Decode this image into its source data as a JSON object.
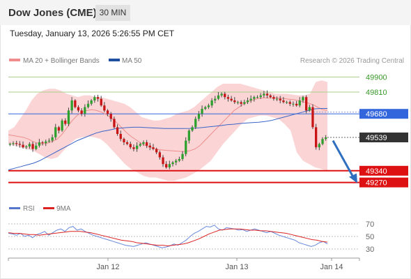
{
  "header": {
    "title": "Dow Jones (CME)",
    "timeframe": "30 MIN"
  },
  "datetime": "Tuesday, January 13, 2026 5:26:55 PM CET",
  "legend": {
    "ma20_label": "MA 20 + Bollinger Bands",
    "ma50_label": "MA 50",
    "rsi_label": "RSI",
    "ma9_label": "9MA"
  },
  "credit": "Research © 2026 Trading Central",
  "colors": {
    "bollinger_fill": "#fbd5d5",
    "ma20": "#f08c8c",
    "ma50": "#3a64c8",
    "candle_up": "#2ea02e",
    "candle_down": "#c81414",
    "resistance_line": "#a8d08d",
    "pivot_line": "#3366dd",
    "support_line": "#dd1111",
    "current_price": "#333333",
    "arrow": "#2f6fbf",
    "rsi": "#6688dd",
    "rsi_ma": "#dd2222"
  },
  "chart_data": [
    {
      "type": "candlestick",
      "x_tick_labels": [
        "Jan 12",
        "Jan 13",
        "Jan 14"
      ],
      "ylim": [
        49185,
        49960
      ],
      "levels": [
        {
          "value": 49900,
          "label": "49900",
          "kind": "resistance"
        },
        {
          "value": 49810,
          "label": "49810",
          "kind": "resistance"
        },
        {
          "value": 49680,
          "label": "49680",
          "kind": "pivot"
        },
        {
          "value": 49539,
          "label": "49539",
          "kind": "current"
        },
        {
          "value": 49340,
          "label": "49340",
          "kind": "support"
        },
        {
          "value": 49270,
          "label": "49270",
          "kind": "support"
        }
      ],
      "close": [
        49500,
        49505,
        49500,
        49495,
        49480,
        49485,
        49500,
        49470,
        49490,
        49510,
        49505,
        49515,
        49520,
        49540,
        49600,
        49580,
        49640,
        49620,
        49700,
        49760,
        49720,
        49700,
        49680,
        49720,
        49740,
        49760,
        49780,
        49770,
        49730,
        49700,
        49680,
        49650,
        49600,
        49560,
        49530,
        49510,
        49500,
        49480,
        49470,
        49490,
        49500,
        49510,
        49490,
        49480,
        49470,
        49450,
        49420,
        49380,
        49360,
        49380,
        49390,
        49400,
        49410,
        49440,
        49520,
        49580,
        49600,
        49650,
        49680,
        49710,
        49720,
        49730,
        49760,
        49770,
        49790,
        49800,
        49780,
        49770,
        49760,
        49750,
        49750,
        49740,
        49750,
        49760,
        49770,
        49780,
        49780,
        49790,
        49800,
        49790,
        49780,
        49770,
        49770,
        49760,
        49750,
        49750,
        49740,
        49740,
        49730,
        49760,
        49780,
        49700,
        49720,
        49600,
        49480,
        49500,
        49530,
        49539
      ],
      "ma20": [
        49555,
        49550,
        49545,
        49540,
        49530,
        49515,
        49505,
        49500,
        49505,
        49515,
        49530,
        49560,
        49600,
        49640,
        49670,
        49690,
        49700,
        49705,
        49700,
        49690,
        49675,
        49655,
        49630,
        49600,
        49570,
        49545,
        49525,
        49505,
        49490,
        49478,
        49470,
        49465,
        49462,
        49460,
        49458,
        49456,
        49455,
        49460,
        49470,
        49490,
        49520,
        49550,
        49580,
        49610,
        49640,
        49670,
        49700,
        49720,
        49740,
        49755,
        49765,
        49772,
        49775,
        49776,
        49776,
        49774,
        49772,
        49768,
        49765,
        49760,
        49752,
        49745,
        49735,
        49720,
        49705,
        49700
      ],
      "ma50": [
        49345,
        49355,
        49365,
        49375,
        49385,
        49400,
        49420,
        49440,
        49460,
        49480,
        49500,
        49520,
        49535,
        49550,
        49565,
        49575,
        49582,
        49590,
        49595,
        49598,
        49600,
        49600,
        49598,
        49596,
        49594,
        49592,
        49592,
        49592,
        49592,
        49593,
        49595,
        49598,
        49602,
        49606,
        49610,
        49615,
        49618,
        49622,
        49625,
        49628,
        49630,
        49634,
        49640,
        49650,
        49660,
        49670,
        49680,
        49690,
        49700,
        49710,
        49712,
        49712
      ],
      "bb_upper": [
        49580,
        49600,
        49650,
        49700,
        49760,
        49800,
        49820,
        49830,
        49830,
        49820,
        49800,
        49790,
        49780,
        49790,
        49790,
        49780,
        49780,
        49770,
        49760,
        49750,
        49740,
        49720,
        49690,
        49660,
        49650,
        49640,
        49640,
        49650,
        49660,
        49680,
        49690,
        49700,
        49720,
        49750,
        49780,
        49810,
        49840,
        49860,
        49860,
        49860,
        49860,
        49850,
        49840,
        49830,
        49820,
        49810,
        49800,
        49800,
        49800,
        49795,
        49790,
        49790,
        49800,
        49870,
        49880,
        49870
      ],
      "bb_lower": [
        49500,
        49490,
        49480,
        49470,
        49460,
        49440,
        49420,
        49410,
        49420,
        49460,
        49500,
        49530,
        49540,
        49545,
        49540,
        49530,
        49500,
        49460,
        49420,
        49380,
        49350,
        49330,
        49310,
        49300,
        49300,
        49290,
        49280,
        49280,
        49290,
        49300,
        49320,
        49340,
        49370,
        49400,
        49450,
        49500,
        49540,
        49580,
        49620,
        49650,
        49660,
        49670,
        49670,
        49660,
        49650,
        49620,
        49580,
        49450,
        49400,
        49380,
        49360,
        49350,
        49340
      ],
      "projection": {
        "from": 49520,
        "to": 49270
      }
    },
    {
      "type": "line",
      "title": "RSI",
      "y_ticks": [
        70,
        50,
        30
      ],
      "ylim": [
        20,
        80
      ],
      "series": [
        {
          "name": "RSI",
          "values": [
            55,
            54,
            52,
            55,
            50,
            52,
            48,
            53,
            55,
            58,
            52,
            56,
            60,
            62,
            58,
            64,
            66,
            60,
            62,
            58,
            55,
            52,
            50,
            48,
            46,
            44,
            42,
            40,
            38,
            36,
            35,
            34,
            36,
            38,
            40,
            38,
            36,
            34,
            32,
            33,
            35,
            38,
            36,
            40,
            44,
            50,
            55,
            58,
            62,
            66,
            65,
            68,
            62,
            60,
            64,
            63,
            62,
            60,
            61,
            58,
            60,
            62,
            60,
            58,
            56,
            58,
            55,
            52,
            50,
            48,
            46,
            44,
            40,
            38,
            36,
            34,
            36,
            40,
            42,
            38
          ]
        },
        {
          "name": "9MA",
          "values": [
            56,
            55,
            55,
            54,
            53,
            53,
            52,
            53,
            54,
            55,
            56,
            57,
            58,
            58,
            58,
            57,
            56,
            54,
            52,
            50,
            48,
            46,
            44,
            43,
            42,
            40,
            39,
            38,
            37,
            36,
            36,
            35,
            36,
            37,
            38,
            40,
            43,
            46,
            50,
            54,
            57,
            60,
            61,
            62,
            62,
            62,
            61,
            60,
            60,
            59,
            59,
            58,
            57,
            56,
            55,
            53,
            51,
            49,
            47,
            45,
            44,
            42,
            41
          ]
        }
      ]
    }
  ]
}
